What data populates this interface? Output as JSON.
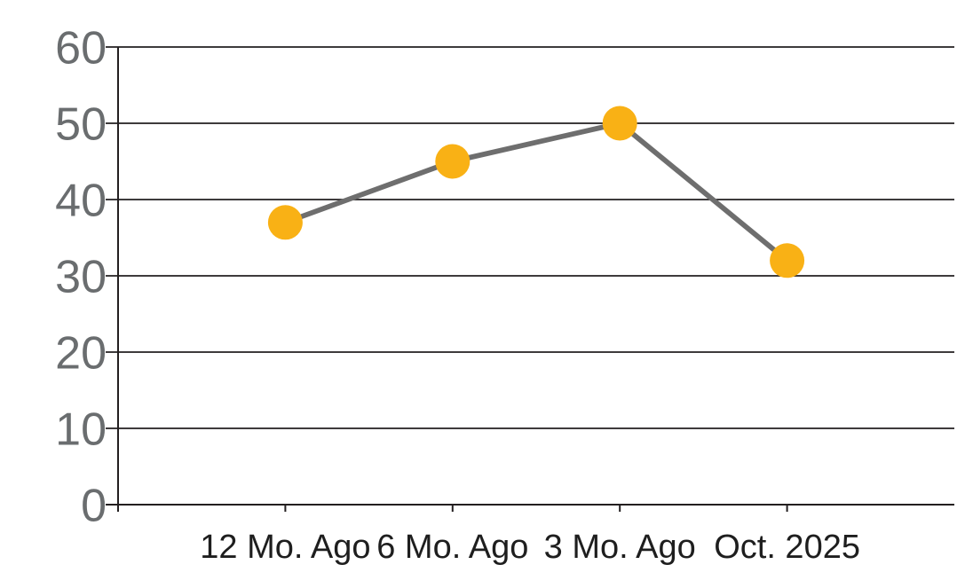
{
  "chart_data": {
    "type": "line",
    "categories": [
      "12 Mo. Ago",
      "6 Mo. Ago",
      "3 Mo. Ago",
      "Oct. 2025"
    ],
    "values": [
      37,
      45,
      50,
      32
    ],
    "ylim": [
      0,
      60
    ],
    "ytick_interval": 10,
    "ytick_labels": [
      "0",
      "10",
      "20",
      "30",
      "40",
      "50",
      "60"
    ],
    "grid": "horizontal-gridlines-on",
    "legend": "none",
    "marker_style": "filled-circle",
    "colors": {
      "marker": "#F9B115",
      "line": "#6E6E6E",
      "gridline": "#231F20",
      "axis": "#231F20",
      "y_tick_label": "#6A6D6F",
      "x_tick_label": "#1E1E1E",
      "background": "#FFFFFF"
    }
  }
}
